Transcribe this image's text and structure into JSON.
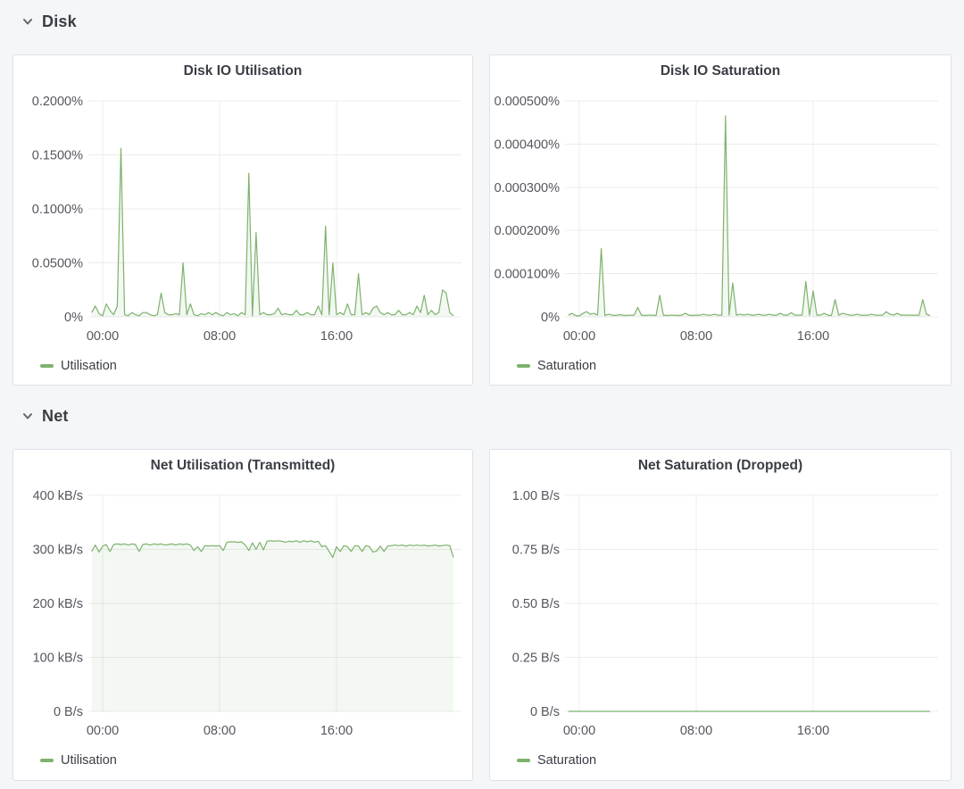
{
  "sections": [
    {
      "label": "Disk"
    },
    {
      "label": "Net"
    }
  ],
  "colors": {
    "series": "#7EB26D",
    "grid": "#ececec",
    "tick": "#55575e",
    "text": "#3a3d44",
    "panel_border": "#dee1e6",
    "panel_bg": "#ffffff",
    "page_bg": "#f5f6f8"
  },
  "chart_data": [
    {
      "type": "line",
      "title": "Disk IO Utilisation",
      "legend_label": "Utilisation",
      "legend_position": "bottom-left",
      "grid": true,
      "y_max": 0.2,
      "y_ticks": [
        {
          "v": 0.2,
          "label": "0.2000%"
        },
        {
          "v": 0.15,
          "label": "0.1500%"
        },
        {
          "v": 0.1,
          "label": "0.1000%"
        },
        {
          "v": 0.05,
          "label": "0.0500%"
        },
        {
          "v": 0,
          "label": "0%"
        }
      ],
      "x_ticks": [
        {
          "h": 0,
          "label": "00:00"
        },
        {
          "h": 8,
          "label": "08:00"
        },
        {
          "h": 16,
          "label": "16:00"
        }
      ],
      "x_start": -0.75,
      "x_step": 0.25,
      "values": [
        0.004,
        0.01,
        0.003,
        0.001,
        0.012,
        0.006,
        0.002,
        0.01,
        0.156,
        0.002,
        0.001,
        0.004,
        0.002,
        0.001,
        0.004,
        0.004,
        0.002,
        0.001,
        0.002,
        0.022,
        0.004,
        0.002,
        0.002,
        0.003,
        0.002,
        0.05,
        0.002,
        0.012,
        0.002,
        0.001,
        0.003,
        0.002,
        0.004,
        0.002,
        0.004,
        0.002,
        0.001,
        0.004,
        0.002,
        0.003,
        0.001,
        0.004,
        0.002,
        0.133,
        0.001,
        0.078,
        0.002,
        0.004,
        0.002,
        0.002,
        0.003,
        0.008,
        0.002,
        0.003,
        0.002,
        0.002,
        0.006,
        0.002,
        0.002,
        0.004,
        0.002,
        0.002,
        0.01,
        0.002,
        0.084,
        0.002,
        0.05,
        0.002,
        0.004,
        0.002,
        0.012,
        0.002,
        0.002,
        0.04,
        0.002,
        0.004,
        0.002,
        0.008,
        0.01,
        0.004,
        0.002,
        0.004,
        0.002,
        0.002,
        0.006,
        0.002,
        0.002,
        0.004,
        0.002,
        0.01,
        0.004,
        0.02,
        0.002,
        0.006,
        0.002,
        0.004,
        0.025,
        0.022,
        0.004,
        0.001
      ]
    },
    {
      "type": "line",
      "title": "Disk IO Saturation",
      "legend_label": "Saturation",
      "legend_position": "bottom-left",
      "grid": true,
      "y_max": 0.0005,
      "y_ticks": [
        {
          "v": 0.0005,
          "label": "0.000500%"
        },
        {
          "v": 0.0004,
          "label": "0.000400%"
        },
        {
          "v": 0.0003,
          "label": "0.000300%"
        },
        {
          "v": 0.0002,
          "label": "0.000200%"
        },
        {
          "v": 0.0001,
          "label": "0.000100%"
        },
        {
          "v": 0,
          "label": "0%"
        }
      ],
      "x_ticks": [
        {
          "h": 0,
          "label": "00:00"
        },
        {
          "h": 8,
          "label": "08:00"
        },
        {
          "h": 16,
          "label": "16:00"
        }
      ],
      "x_start": -0.75,
      "x_step": 0.25,
      "values": [
        4e-06,
        8e-06,
        3e-06,
        2e-06,
        8e-06,
        1.2e-05,
        6e-06,
        8e-06,
        4e-06,
        0.000158,
        3e-06,
        6e-06,
        4e-06,
        3e-06,
        5e-06,
        4e-06,
        3e-06,
        4e-06,
        4e-06,
        2.2e-05,
        4e-06,
        3e-06,
        4e-06,
        4e-06,
        3e-06,
        5e-05,
        4e-06,
        3e-06,
        4e-06,
        4e-06,
        3e-06,
        4e-06,
        8e-06,
        4e-06,
        3e-06,
        4e-06,
        4e-06,
        6e-06,
        4e-06,
        4e-06,
        6e-06,
        4e-06,
        4e-06,
        0.000465,
        4e-06,
        7.8e-05,
        4e-06,
        6e-06,
        4e-06,
        6e-06,
        4e-06,
        4e-06,
        6e-06,
        4e-06,
        4e-06,
        6e-06,
        4e-06,
        4e-06,
        8e-06,
        4e-06,
        4e-06,
        1e-05,
        4e-06,
        4e-06,
        4e-06,
        8.2e-05,
        4e-06,
        6e-05,
        4e-06,
        4e-06,
        8e-06,
        4e-06,
        3e-06,
        4e-05,
        4e-06,
        8e-06,
        6e-06,
        4e-06,
        4e-06,
        6e-06,
        4e-06,
        4e-06,
        4e-06,
        6e-06,
        4e-06,
        4e-06,
        4e-06,
        1.2e-05,
        6e-06,
        4e-06,
        8e-06,
        4e-06,
        4e-06,
        4e-06,
        4e-06,
        4e-06,
        4e-06,
        4e-05,
        6e-06,
        3e-06
      ]
    },
    {
      "type": "line",
      "title": "Net Utilisation (Transmitted)",
      "legend_label": "Utilisation",
      "legend_position": "bottom-left",
      "grid": true,
      "y_max": 400,
      "y_ticks": [
        {
          "v": 400,
          "label": "400 kB/s"
        },
        {
          "v": 300,
          "label": "300 kB/s"
        },
        {
          "v": 200,
          "label": "200 kB/s"
        },
        {
          "v": 100,
          "label": "100 kB/s"
        },
        {
          "v": 0,
          "label": "0 B/s"
        }
      ],
      "x_ticks": [
        {
          "h": 0,
          "label": "00:00"
        },
        {
          "h": 8,
          "label": "08:00"
        },
        {
          "h": 16,
          "label": "16:00"
        }
      ],
      "x_start": -0.75,
      "x_step": 0.25,
      "values": [
        296,
        308,
        295,
        306,
        309,
        296,
        309,
        310,
        309,
        310,
        308,
        310,
        309,
        296,
        309,
        310,
        308,
        310,
        309,
        310,
        308,
        309,
        310,
        308,
        310,
        309,
        310,
        308,
        298,
        305,
        296,
        307,
        306,
        307,
        306,
        307,
        298,
        313,
        314,
        314,
        313,
        314,
        308,
        298,
        312,
        300,
        313,
        299,
        315,
        316,
        315,
        316,
        315,
        313,
        315,
        314,
        316,
        313,
        316,
        314,
        316,
        313,
        315,
        305,
        307,
        296,
        285,
        305,
        296,
        307,
        305,
        296,
        307,
        306,
        296,
        307,
        305,
        295,
        297,
        306,
        296,
        306,
        307,
        308,
        307,
        308,
        306,
        308,
        307,
        308,
        307,
        308,
        306,
        307,
        308,
        306,
        307,
        308,
        307,
        285
      ]
    },
    {
      "type": "line",
      "title": "Net Saturation (Dropped)",
      "legend_label": "Saturation",
      "legend_position": "bottom-left",
      "grid": true,
      "y_max": 1.0,
      "y_ticks": [
        {
          "v": 1.0,
          "label": "1.00 B/s"
        },
        {
          "v": 0.75,
          "label": "0.75 B/s"
        },
        {
          "v": 0.5,
          "label": "0.50 B/s"
        },
        {
          "v": 0.25,
          "label": "0.25 B/s"
        },
        {
          "v": 0,
          "label": "0 B/s"
        }
      ],
      "x_ticks": [
        {
          "h": 0,
          "label": "00:00"
        },
        {
          "h": 8,
          "label": "08:00"
        },
        {
          "h": 16,
          "label": "16:00"
        }
      ],
      "x_start": -0.75,
      "x_step": 12.375,
      "values": [
        0,
        0,
        0
      ]
    }
  ]
}
